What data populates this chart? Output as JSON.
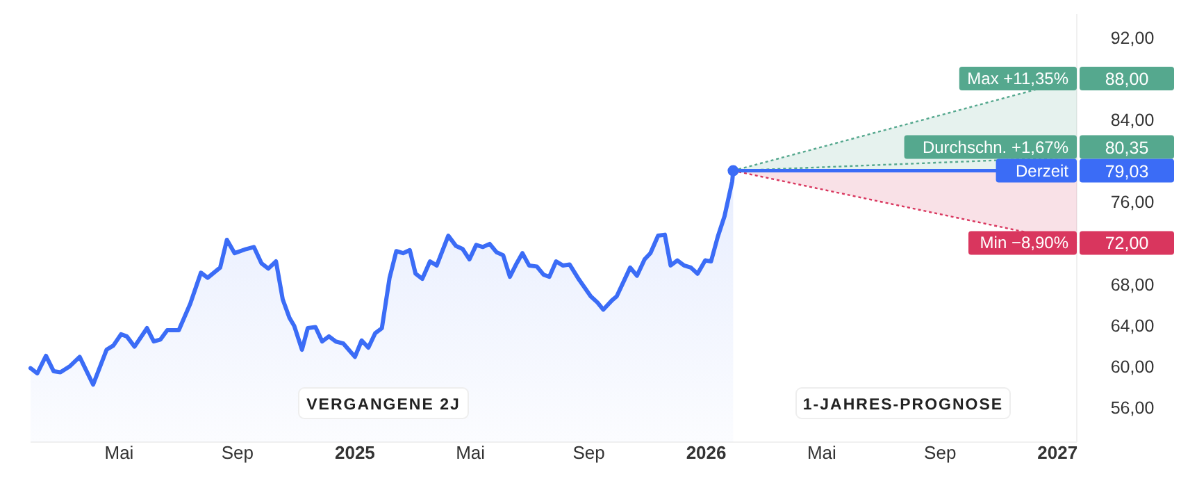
{
  "chart_data": {
    "type": "area",
    "xlim": [
      "2024-01-30",
      "2027-01-21"
    ],
    "ylim": [
      52.6,
      94.3
    ],
    "xticks": [
      {
        "value": "2024-05-01",
        "label": "Mai"
      },
      {
        "value": "2024-09-01",
        "label": "Sep"
      },
      {
        "value": "2025-01-01",
        "label": "2025"
      },
      {
        "value": "2025-05-01",
        "label": "Mai"
      },
      {
        "value": "2025-09-01",
        "label": "Sep"
      },
      {
        "value": "2026-01-01",
        "label": "2026"
      },
      {
        "value": "2026-05-01",
        "label": "Mai"
      },
      {
        "value": "2026-09-01",
        "label": "Sep"
      },
      {
        "value": "2027-01-01",
        "label": "2027"
      }
    ],
    "yticks": [
      {
        "value": 56,
        "label": "56,00"
      },
      {
        "value": 60,
        "label": "60,00"
      },
      {
        "value": 64,
        "label": "64,00"
      },
      {
        "value": 68,
        "label": "68,00"
      },
      {
        "value": 76,
        "label": "76,00"
      },
      {
        "value": 84,
        "label": "84,00"
      },
      {
        "value": 92,
        "label": "92,00"
      }
    ],
    "grid": false,
    "annotations": [
      "VERGANGENE 2J",
      "1-JAHRES-PROGNOSE"
    ],
    "series": [
      {
        "color": "#3b6cf6",
        "x": [
          "2024-01-30",
          "2024-02-06",
          "2024-02-15",
          "2024-02-23",
          "2024-03-01",
          "2024-03-11",
          "2024-03-21",
          "2024-04-04",
          "2024-04-18",
          "2024-04-25",
          "2024-05-03",
          "2024-05-09",
          "2024-05-17",
          "2024-05-30",
          "2024-06-06",
          "2024-06-13",
          "2024-06-20",
          "2024-07-02",
          "2024-07-14",
          "2024-07-25",
          "2024-08-01",
          "2024-08-14",
          "2024-08-21",
          "2024-08-29",
          "2024-09-10",
          "2024-09-18",
          "2024-09-26",
          "2024-10-03",
          "2024-10-11",
          "2024-10-18",
          "2024-10-25",
          "2024-10-30",
          "2024-11-07",
          "2024-11-13",
          "2024-11-21",
          "2024-11-28",
          "2024-12-05",
          "2024-12-12",
          "2024-12-20",
          "2025-01-01",
          "2025-01-08",
          "2025-01-15",
          "2025-01-22",
          "2025-01-29",
          "2025-02-06",
          "2025-02-13",
          "2025-02-20",
          "2025-02-27",
          "2025-03-05",
          "2025-03-12",
          "2025-03-20",
          "2025-03-27",
          "2025-04-08",
          "2025-04-16",
          "2025-04-23",
          "2025-04-30",
          "2025-05-07",
          "2025-05-14",
          "2025-05-21",
          "2025-05-28",
          "2025-06-04",
          "2025-06-11",
          "2025-06-18",
          "2025-06-24",
          "2025-07-01",
          "2025-07-09",
          "2025-07-16",
          "2025-07-22",
          "2025-07-29",
          "2025-08-05",
          "2025-08-12",
          "2025-08-22",
          "2025-09-03",
          "2025-09-10",
          "2025-09-16",
          "2025-09-25",
          "2025-09-30",
          "2025-10-14",
          "2025-10-21",
          "2025-10-29",
          "2025-11-04",
          "2025-11-12",
          "2025-11-19",
          "2025-11-25",
          "2025-12-02",
          "2025-12-09",
          "2025-12-16",
          "2025-12-23",
          "2025-12-31",
          "2026-01-06",
          "2026-01-13",
          "2026-01-20",
          "2026-01-28",
          "2026-01-29"
        ],
        "values": [
          59.8,
          59.3,
          61.0,
          59.5,
          59.4,
          60.0,
          60.9,
          58.2,
          61.6,
          62.0,
          63.1,
          62.9,
          61.9,
          63.7,
          62.4,
          62.6,
          63.5,
          63.5,
          66.1,
          69.1,
          68.6,
          69.6,
          72.3,
          71.0,
          71.4,
          71.6,
          70.0,
          69.5,
          70.2,
          66.5,
          64.7,
          63.9,
          61.6,
          63.7,
          63.8,
          62.4,
          62.9,
          62.4,
          62.2,
          60.9,
          62.5,
          61.8,
          63.2,
          63.7,
          68.6,
          71.2,
          71.0,
          71.3,
          69.0,
          68.5,
          70.2,
          69.8,
          72.7,
          71.7,
          71.4,
          70.4,
          71.8,
          71.6,
          71.9,
          71.1,
          70.8,
          68.7,
          70.0,
          71.0,
          69.8,
          69.7,
          68.9,
          68.7,
          70.2,
          69.8,
          69.9,
          68.4,
          66.8,
          66.2,
          65.5,
          66.4,
          66.8,
          69.6,
          68.8,
          70.4,
          71.0,
          72.7,
          72.8,
          69.8,
          70.3,
          69.8,
          69.6,
          69.0,
          70.3,
          70.2,
          72.6,
          74.6,
          78.0,
          79.03
        ]
      },
      {
        "type": "line",
        "name": "Max +11,35%",
        "color": "#55a88e",
        "line_style": "dotted",
        "x": [
          "2026-01-29",
          "2027-01-21"
        ],
        "values": [
          79.03,
          88.0
        ],
        "value_labels": [
          null,
          "88,00"
        ],
        "lower": [
          79.03,
          79.03
        ],
        "upper": [
          79.03,
          88.0
        ]
      },
      {
        "type": "line",
        "name": "Durchschn. +1,67%",
        "color": "#55a88e",
        "line_style": "dotted",
        "x": [
          "2026-01-29",
          "2027-01-21"
        ],
        "values": [
          79.03,
          80.35
        ],
        "value_labels": [
          null,
          "80,35"
        ]
      },
      {
        "type": "line",
        "name": "Min −8,90%",
        "color": "#d9365e",
        "line_style": "dotted",
        "x": [
          "2026-01-29",
          "2027-01-21"
        ],
        "values": [
          79.03,
          72.0
        ],
        "value_labels": [
          null,
          "72,00"
        ],
        "lower": [
          79.03,
          72.0
        ],
        "upper": [
          79.03,
          79.03
        ]
      },
      {
        "type": "line",
        "name": "Derzeit",
        "color": "#3b6cf6",
        "line_style": "solid",
        "x": [
          "2026-01-29",
          "2027-01-21"
        ],
        "values": [
          79.03,
          79.03
        ],
        "value_labels": [
          null,
          "79,03"
        ]
      }
    ]
  }
}
